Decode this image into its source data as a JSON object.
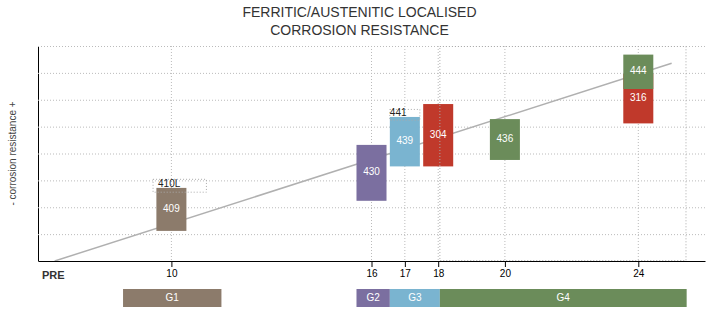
{
  "chart_data": {
    "type": "bar",
    "title": "FERRITIC/AUSTENITIC LOCALISED",
    "subtitle": "CORROSION RESISTANCE",
    "xlabel": "PRE",
    "ylabel": "- corrosion resistance +",
    "categories": [
      "409",
      "430",
      "439",
      "304",
      "436",
      "316",
      "444"
    ],
    "x": [
      10,
      16,
      17,
      18,
      20,
      24,
      24
    ],
    "bottoms": [
      1.4,
      2.8,
      4.4,
      4.4,
      4.7,
      6.4,
      8.0
    ],
    "values": [
      2.0,
      2.6,
      2.3,
      2.9,
      1.9,
      2.3,
      1.6
    ],
    "colors": [
      "#8c7b6b",
      "#7b6fa0",
      "#7ab4d0",
      "#c0392b",
      "#6b8c5a",
      "#c0392b",
      "#6b8c5a"
    ],
    "xlim": [
      6,
      26
    ],
    "xticks": [
      10,
      16,
      17,
      18,
      20,
      24
    ],
    "ylim": [
      0,
      10
    ],
    "yticks": [
      0,
      1.25,
      2.5,
      3.75,
      5,
      6.25,
      7.5,
      8.75,
      10
    ],
    "grid": true,
    "tick_labels": "x",
    "groups": [
      {
        "label": "G1",
        "start": 8.55,
        "end": 11.5,
        "color": "#8c7b6b"
      },
      {
        "label": "G2",
        "start": 15.55,
        "end": 16.55,
        "color": "#7b6fa0"
      },
      {
        "label": "G3",
        "start": 16.55,
        "end": 18.05,
        "color": "#7ab4d0"
      },
      {
        "label": "G4",
        "start": 18.05,
        "end": 25.45,
        "color": "#6b8c5a"
      }
    ],
    "trendline": {
      "x": [
        6.5,
        25.0
      ],
      "y": [
        0.0,
        9.2
      ]
    },
    "annotations": [
      {
        "text": "410L",
        "x": 9.6,
        "y": 3.45
      },
      {
        "text": "441",
        "x": 16.55,
        "y": 6.75
      }
    ],
    "highlights": [
      {
        "x": 18.05,
        "y": 0.02,
        "width": 7.38,
        "height": 9.96
      },
      {
        "x": 9.45,
        "y": 3.2,
        "width": 1.6,
        "height": 0.6
      },
      {
        "x": 16.55,
        "y": 6.55,
        "width": 0.9,
        "height": 0.5
      }
    ]
  }
}
